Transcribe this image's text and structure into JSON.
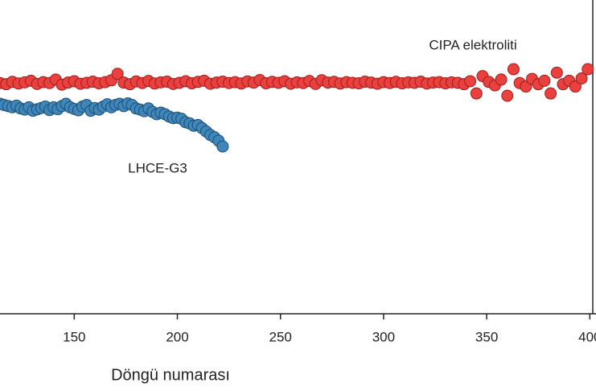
{
  "chart_data": {
    "type": "scatter",
    "x_label": "Döngü numarası",
    "annotations": [
      "CIPA elektroliti",
      "LHCE-G3"
    ],
    "xlim": [
      114,
      403
    ],
    "xticks": [
      150,
      200,
      250,
      300,
      350,
      400
    ],
    "ylim": [
      0,
      136
    ],
    "series": [
      {
        "name": "LHCE-G3",
        "color": "#3f86ba",
        "x": [
          114,
          116,
          118,
          120,
          122,
          124,
          126,
          128,
          130,
          132,
          134,
          136,
          138,
          140,
          142,
          144,
          146,
          148,
          150,
          152,
          154,
          156,
          158,
          160,
          162,
          164,
          166,
          168,
          170,
          172,
          174,
          176,
          178,
          180,
          182,
          184,
          186,
          188,
          190,
          192,
          194,
          196,
          198,
          200,
          202,
          204,
          206,
          208,
          210,
          212,
          214,
          216,
          218,
          220,
          222
        ],
        "values": [
          91,
          90.5,
          90,
          89.5,
          90.2,
          89,
          88.5,
          89.5,
          88,
          88.6,
          89.2,
          89.8,
          88.3,
          89.5,
          88.7,
          90,
          91,
          89.5,
          88.8,
          88.2,
          89.8,
          90.5,
          88,
          89.2,
          88.5,
          89.8,
          90.8,
          89.5,
          90.5,
          91,
          90,
          91.2,
          90.5,
          89,
          88.5,
          87.8,
          89,
          87.5,
          86.5,
          87.2,
          86.5,
          85.5,
          84.8,
          85,
          84.5,
          83,
          82.5,
          81.5,
          81.8,
          80.5,
          79,
          77.5,
          76.5,
          75,
          72.5
        ]
      },
      {
        "name": "CIPA elektroliti",
        "color": "#ea403e",
        "x": [
          114,
          117,
          120,
          123,
          126,
          129,
          132,
          135,
          138,
          141,
          144,
          147,
          150,
          153,
          156,
          159,
          162,
          165,
          168,
          171,
          174,
          177,
          180,
          183,
          186,
          189,
          192,
          195,
          198,
          201,
          204,
          207,
          210,
          213,
          216,
          219,
          222,
          225,
          228,
          231,
          234,
          237,
          240,
          243,
          246,
          249,
          252,
          255,
          258,
          261,
          264,
          267,
          270,
          273,
          276,
          279,
          282,
          285,
          288,
          291,
          294,
          297,
          300,
          303,
          306,
          309,
          312,
          315,
          318,
          321,
          324,
          327,
          330,
          333,
          336,
          339,
          342,
          345,
          348,
          351,
          354,
          357,
          360,
          363,
          366,
          369,
          372,
          375,
          378,
          381,
          384,
          387,
          390,
          393,
          396,
          399
        ],
        "values": [
          100,
          99.5,
          100.5,
          99.8,
          100.3,
          101,
          99.6,
          100.4,
          100,
          101.5,
          99.3,
          100.2,
          100.8,
          99.7,
          100.1,
          100.6,
          99.9,
          100.4,
          101.2,
          104,
          100.2,
          99.5,
          100.7,
          100,
          100.9,
          99.8,
          100.3,
          100.6,
          99.6,
          100.1,
          100.8,
          99.9,
          100.5,
          101,
          99.7,
          100.2,
          100.6,
          100,
          100.4,
          99.8,
          100.7,
          100.2,
          101.3,
          99.9,
          100.5,
          100.1,
          100.8,
          99.7,
          100.3,
          100,
          100.9,
          99.6,
          101.2,
          100.2,
          100.5,
          99.8,
          100.4,
          100.1,
          99.9,
          100.6,
          100.2,
          99.7,
          100.4,
          100,
          100.5,
          99.9,
          100.3,
          100.1,
          100.6,
          99.8,
          100.2,
          100.4,
          99.9,
          100.3,
          100.1,
          99.5,
          100.8,
          95.5,
          103,
          100.5,
          99,
          101.5,
          94.5,
          106,
          100,
          98.5,
          101.8,
          99.5,
          101,
          95.5,
          104.5,
          99.5,
          101,
          98.5,
          102,
          106
        ]
      }
    ]
  }
}
